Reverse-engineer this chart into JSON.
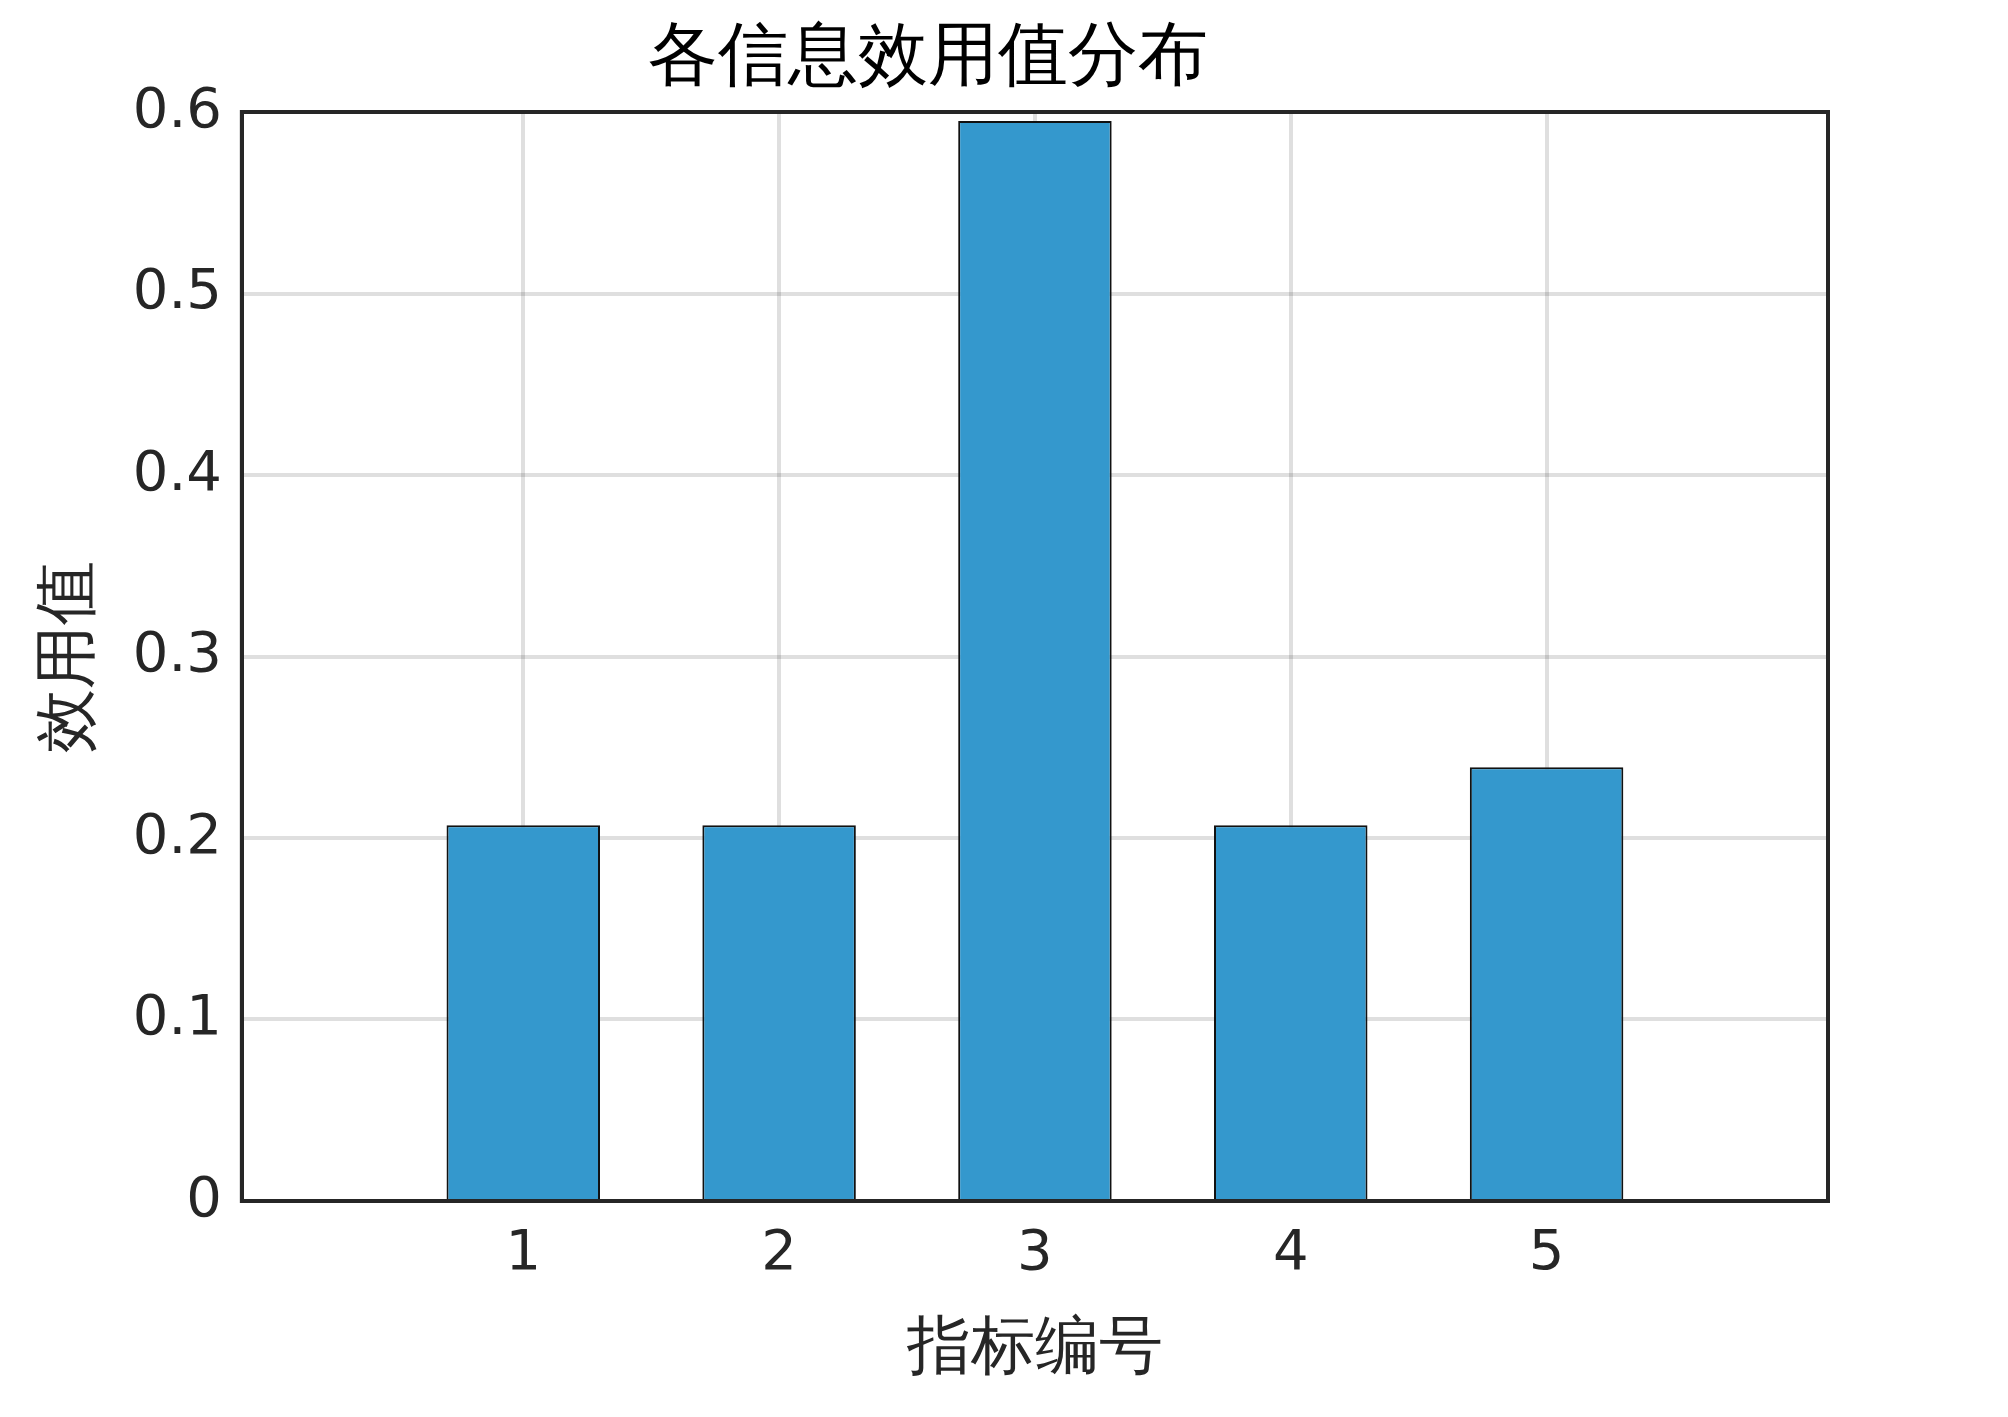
{
  "chart_data": {
    "type": "bar",
    "title": "各信息效用值分布",
    "xlabel": "指标编号",
    "ylabel": "效用值",
    "x": [
      1,
      2,
      3,
      4,
      5
    ],
    "values": [
      0.207,
      0.207,
      0.595,
      0.207,
      0.239
    ],
    "color": "#3498cd",
    "xlim": [
      -0.1,
      6.1
    ],
    "xticks": [
      1,
      2,
      3,
      4,
      5
    ],
    "ylim": [
      0,
      0.6
    ],
    "yticks": [
      {
        "value": 0,
        "label": "0"
      },
      {
        "value": 0.1,
        "label": "0.1"
      },
      {
        "value": 0.2,
        "label": "0.2"
      },
      {
        "value": 0.3,
        "label": "0.3"
      },
      {
        "value": 0.4,
        "label": "0.4"
      },
      {
        "value": 0.5,
        "label": "0.5"
      },
      {
        "value": 0.6,
        "label": "0.6"
      }
    ],
    "grid": true,
    "legend": false
  }
}
